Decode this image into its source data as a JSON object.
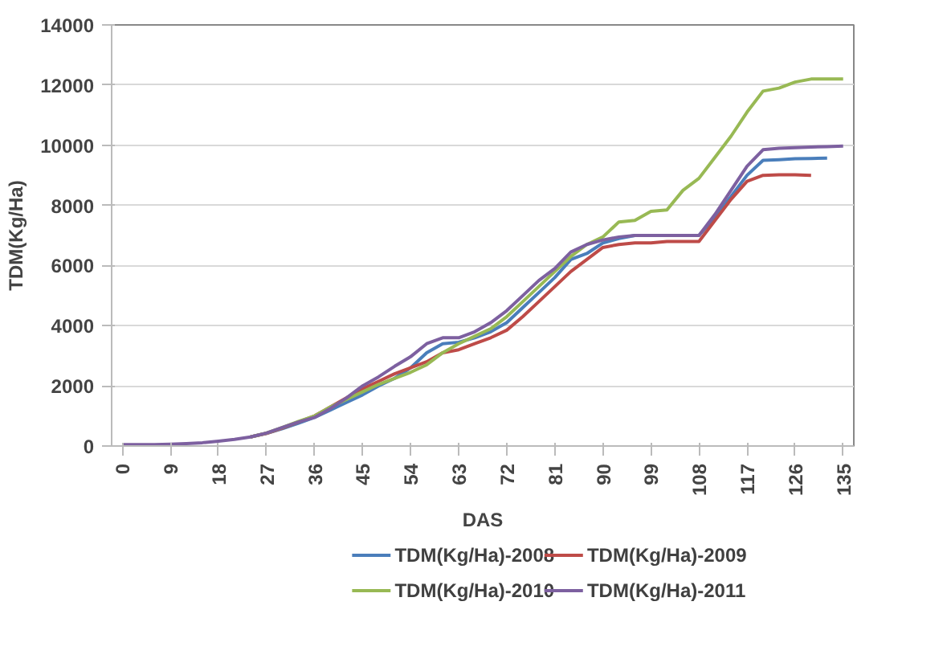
{
  "chart_data": {
    "type": "line",
    "xlabel": "DAS",
    "ylabel": "TDM(Kg/Ha)",
    "x": [
      0,
      3,
      6,
      9,
      12,
      15,
      18,
      21,
      24,
      27,
      30,
      33,
      36,
      39,
      42,
      45,
      48,
      51,
      54,
      57,
      60,
      63,
      66,
      69,
      72,
      75,
      78,
      81,
      84,
      87,
      90,
      93,
      96,
      99,
      102,
      105,
      108,
      111,
      114,
      117,
      120,
      123,
      126,
      129,
      132,
      135
    ],
    "xlim": [
      -2,
      137
    ],
    "xticks": [
      0,
      9,
      18,
      27,
      36,
      45,
      54,
      63,
      72,
      81,
      90,
      99,
      108,
      117,
      126,
      135
    ],
    "ylim": [
      0,
      14000
    ],
    "yticks": [
      0,
      2000,
      4000,
      6000,
      8000,
      10000,
      12000,
      14000
    ],
    "grid": "y",
    "legend": "bottom",
    "marker": "none",
    "line_style": "solid",
    "series": [
      {
        "name": "TDM(Kg/Ha)-2008",
        "color": "#4a7ebb",
        "values": [
          null,
          null,
          null,
          null,
          null,
          null,
          null,
          null,
          300,
          420,
          580,
          760,
          950,
          1200,
          1450,
          1700,
          2000,
          2250,
          2600,
          3100,
          3400,
          3450,
          3600,
          3800,
          4100,
          4600,
          5100,
          5600,
          6200,
          6400,
          6750,
          6900,
          7000,
          7000,
          7000,
          7000,
          7000,
          7600,
          8300,
          9000,
          9500,
          9520,
          9550,
          9560,
          9570,
          null
        ]
      },
      {
        "name": "TDM(Kg/Ha)-2009",
        "color": "#be4b48",
        "values": [
          null,
          null,
          null,
          null,
          null,
          null,
          null,
          null,
          300,
          420,
          600,
          800,
          1000,
          1300,
          1600,
          1900,
          2150,
          2400,
          2600,
          2800,
          3100,
          3200,
          3400,
          3600,
          3850,
          4300,
          4800,
          5300,
          5800,
          6200,
          6600,
          6700,
          6750,
          6750,
          6800,
          6800,
          6800,
          7500,
          8200,
          8800,
          9000,
          9020,
          9020,
          9000,
          null,
          null
        ]
      },
      {
        "name": "TDM(Kg/Ha)-2010",
        "color": "#98b954",
        "values": [
          null,
          null,
          null,
          null,
          null,
          null,
          null,
          null,
          300,
          430,
          620,
          820,
          1000,
          1300,
          1550,
          1800,
          2050,
          2250,
          2450,
          2700,
          3100,
          3400,
          3650,
          3900,
          4300,
          4800,
          5300,
          5800,
          6300,
          6700,
          6950,
          7450,
          7500,
          7800,
          7850,
          8500,
          8900,
          9600,
          10300,
          11100,
          11800,
          11900,
          12100,
          12200,
          12200,
          12200
        ]
      },
      {
        "name": "TDM(Kg/Ha)-2011",
        "color": "#7d60a0",
        "values": [
          50,
          50,
          50,
          60,
          80,
          110,
          160,
          220,
          300,
          430,
          620,
          800,
          950,
          1250,
          1600,
          2000,
          2300,
          2650,
          2970,
          3400,
          3600,
          3600,
          3800,
          4100,
          4500,
          5000,
          5500,
          5900,
          6450,
          6700,
          6850,
          6950,
          7000,
          7000,
          7000,
          7000,
          7000,
          7700,
          8500,
          9300,
          9850,
          9900,
          9920,
          9940,
          9950,
          9970
        ]
      }
    ]
  }
}
